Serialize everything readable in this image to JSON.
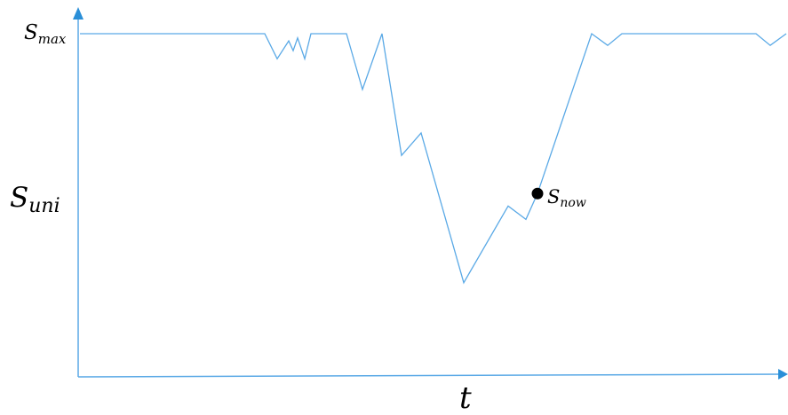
{
  "chart_data": {
    "type": "line",
    "title": "",
    "xlabel": "t",
    "ylabel": {
      "base": "S",
      "sub": "uni"
    },
    "y_tick": {
      "base": "S",
      "sub": "max"
    },
    "annotation": {
      "base": "S",
      "sub": "now",
      "x": 605,
      "y": 0.51
    },
    "x_range": [
      90,
      885
    ],
    "y_range": [
      0,
      1
    ],
    "grid": false,
    "series": [
      {
        "color": "#5aa9e6",
        "x": [
          90,
          298,
          312,
          325,
          330,
          335,
          343,
          350,
          390,
          408,
          430,
          452,
          474,
          522,
          572,
          592,
          605,
          666,
          684,
          700,
          851,
          867,
          885
        ],
        "y": [
          1.0,
          1.0,
          0.923,
          0.978,
          0.948,
          0.987,
          0.923,
          1.0,
          1.0,
          0.829,
          1.0,
          0.627,
          0.696,
          0.237,
          0.472,
          0.431,
          0.51,
          1.0,
          0.964,
          1.0,
          1.0,
          0.964,
          1.0
        ]
      }
    ]
  },
  "colors": {
    "axis": "#5aa9e6",
    "line": "#5aa9e6",
    "marker": "#000000"
  }
}
